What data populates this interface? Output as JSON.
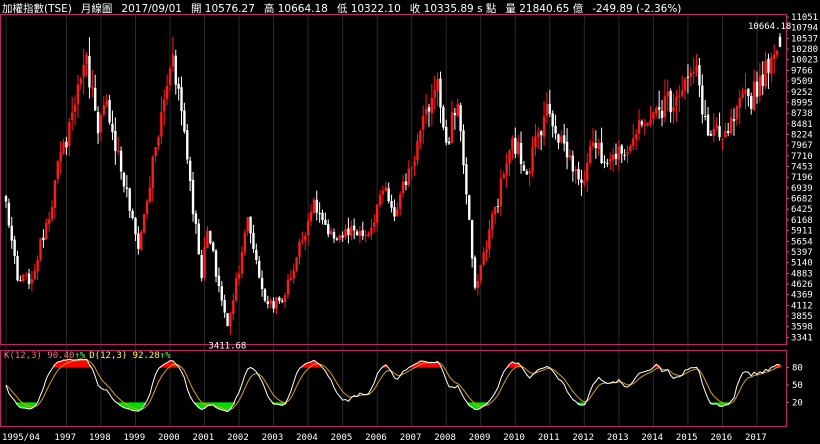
{
  "header": {
    "index_name": "加權指數(TSE)",
    "period": "月線圖",
    "date": "2017/09/01",
    "open_label": "開",
    "open": "10576.27",
    "high_label": "高",
    "high": "10664.18",
    "low_label": "低",
    "low": "10322.10",
    "close_label": "收",
    "close": "10335.89",
    "close_unit": "s 點",
    "volume_label": "量",
    "volume": "21840.65 億",
    "change": "-249.89 (-2.36%)"
  },
  "colors": {
    "background": "#000000",
    "up": "#ff1a1a",
    "down": "#ffffff",
    "grid": "#2a2a2a",
    "frame": "#c0246a",
    "k_line": "#ffffff",
    "d_line": "#d8a000",
    "overbought_fill": "#ff0000",
    "oversold_fill": "#00dd00",
    "k_label": "#ff7070",
    "d_label": "#ffff44"
  },
  "chart_data": [
    {
      "type": "candlestick",
      "title": "加權指數(TSE) 月線圖",
      "x_tick_labels": [
        "1995/04",
        "1997",
        "1998",
        "1999",
        "2000",
        "2001",
        "2002",
        "2003",
        "2004",
        "2005",
        "2006",
        "2007",
        "2008",
        "2009",
        "2010",
        "2011",
        "2012",
        "2013",
        "2014",
        "2015",
        "2016",
        "2017"
      ],
      "y_ticks": [
        11051,
        10794,
        10537,
        10280,
        10023,
        9766,
        9509,
        9252,
        8995,
        8738,
        8481,
        8224,
        7967,
        7710,
        7453,
        7196,
        6939,
        6682,
        6425,
        6168,
        5911,
        5654,
        5397,
        5140,
        4883,
        4626,
        4369,
        4112,
        3855,
        3598,
        3341
      ],
      "ylim": [
        3341,
        11051
      ],
      "annotations": [
        {
          "text": "10664.18",
          "value": 10664.18,
          "date": "2017/09"
        },
        {
          "text": "3411.68",
          "value": 3411.68,
          "date": "2001/10"
        }
      ],
      "anchor_points": [
        {
          "date": "1995/04",
          "close": 6600
        },
        {
          "date": "1995/08",
          "close": 4700
        },
        {
          "date": "1996/01",
          "close": 4700
        },
        {
          "date": "1997/08",
          "close": 10200
        },
        {
          "date": "1997/12",
          "close": 8200
        },
        {
          "date": "1998/03",
          "close": 9000
        },
        {
          "date": "1999/02",
          "close": 5500
        },
        {
          "date": "2000/02",
          "close": 10200
        },
        {
          "date": "2000/06",
          "close": 8300
        },
        {
          "date": "2000/12",
          "close": 4800
        },
        {
          "date": "2001/02",
          "close": 5900
        },
        {
          "date": "2001/09",
          "close": 3600
        },
        {
          "date": "2002/04",
          "close": 6200
        },
        {
          "date": "2002/10",
          "close": 4200
        },
        {
          "date": "2003/04",
          "close": 4200
        },
        {
          "date": "2004/03",
          "close": 6600
        },
        {
          "date": "2004/08",
          "close": 5800
        },
        {
          "date": "2005/10",
          "close": 5800
        },
        {
          "date": "2006/04",
          "close": 7000
        },
        {
          "date": "2006/07",
          "close": 6300
        },
        {
          "date": "2007/10",
          "close": 9500
        },
        {
          "date": "2008/01",
          "close": 8000
        },
        {
          "date": "2008/05",
          "close": 9000
        },
        {
          "date": "2008/11",
          "close": 4500
        },
        {
          "date": "2009/12",
          "close": 8100
        },
        {
          "date": "2010/05",
          "close": 7300
        },
        {
          "date": "2010/12",
          "close": 8900
        },
        {
          "date": "2011/12",
          "close": 7000
        },
        {
          "date": "2012/03",
          "close": 8000
        },
        {
          "date": "2012/12",
          "close": 7700
        },
        {
          "date": "2013/12",
          "close": 8600
        },
        {
          "date": "2015/04",
          "close": 9800
        },
        {
          "date": "2015/08",
          "close": 8200
        },
        {
          "date": "2016/01",
          "close": 8100
        },
        {
          "date": "2017/09",
          "close": 10335.89
        }
      ]
    },
    {
      "type": "line",
      "title": "",
      "legend": [
        {
          "name": "K(12,3)",
          "value": "90.40"
        },
        {
          "name": "D(12,3)",
          "value": "92.28"
        }
      ],
      "y_ticks": [
        80,
        50,
        20
      ],
      "ylim": [
        0,
        100
      ],
      "overbought_level": 80,
      "oversold_level": 20
    }
  ]
}
